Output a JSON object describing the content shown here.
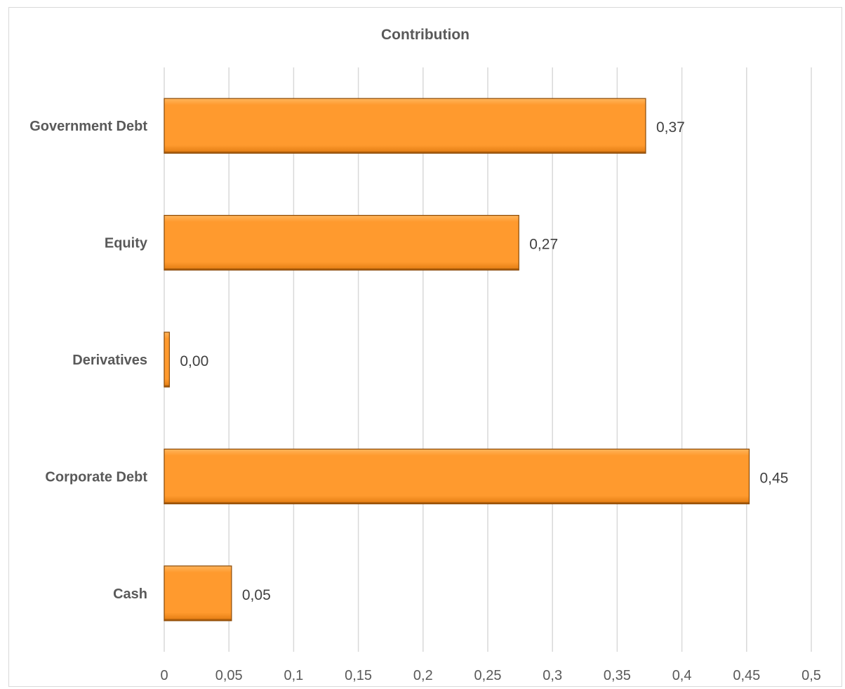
{
  "chart_data": {
    "type": "bar",
    "orientation": "horizontal",
    "title": "Contribution",
    "categories": [
      "Government Debt",
      "Equity",
      "Derivatives",
      "Corporate Debt",
      "Cash"
    ],
    "values": [
      0.372,
      0.274,
      0.004,
      0.452,
      0.052
    ],
    "data_labels": [
      "0,37",
      "0,27",
      "0,00",
      "0,45",
      "0,05"
    ],
    "xlim": [
      0,
      0.5
    ],
    "x_ticks": [
      0,
      0.05,
      0.1,
      0.15,
      0.2,
      0.25,
      0.3,
      0.35,
      0.4,
      0.45,
      0.5
    ],
    "x_tick_labels": [
      "0",
      "0,05",
      "0,1",
      "0,15",
      "0,2",
      "0,25",
      "0,3",
      "0,35",
      "0,4",
      "0,45",
      "0,5"
    ],
    "grid": "vertical",
    "legend": "none",
    "colors": {
      "bar_top": "#ffb55c",
      "bar_mid": "#ff9a2e",
      "bar_bottom": "#e07a10",
      "bar_edge": "#8a4a08",
      "grid": "#d9d9d9",
      "text": "#595959"
    }
  }
}
